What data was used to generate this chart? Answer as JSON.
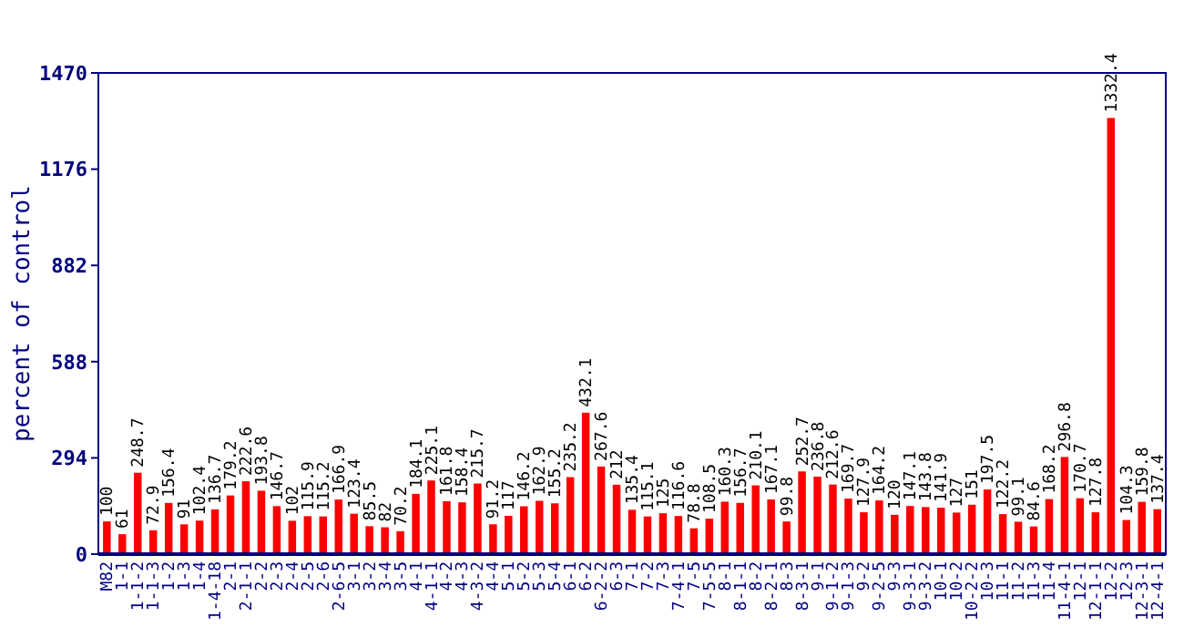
{
  "chart_data": {
    "type": "bar",
    "ylabel": "percent of control",
    "categories": [
      "M82",
      "1-1",
      "1-1-2",
      "1-1-3",
      "1-2",
      "1-3",
      "1-4",
      "1-4-18",
      "2-1",
      "2-1-1",
      "2-2",
      "2-3",
      "2-4",
      "2-5",
      "2-6",
      "2-6-5",
      "3-1",
      "3-2",
      "3-4",
      "3-5",
      "4-1",
      "4-1-1",
      "4-2",
      "4-3",
      "4-3-2",
      "4-4",
      "5-1",
      "5-2",
      "5-3",
      "5-4",
      "6-1",
      "6-2",
      "6-2-2",
      "6-3",
      "7-1",
      "7-2",
      "7-3",
      "7-4-1",
      "7-5",
      "7-5-5",
      "8-1",
      "8-1-1",
      "8-2",
      "8-2-1",
      "8-3",
      "8-3-1",
      "9-1",
      "9-1-2",
      "9-1-3",
      "9-2",
      "9-2-5",
      "9-3",
      "9-3-1",
      "9-3-2",
      "10-1",
      "10-2",
      "10-2-2",
      "10-3",
      "11-1",
      "11-2",
      "11-3",
      "11-4",
      "11-4-1",
      "12-1",
      "12-1-1",
      "12-2",
      "12-3",
      "12-3-1",
      "12-4-1"
    ],
    "values": [
      100,
      61,
      248.7,
      72.9,
      156.4,
      91,
      102.4,
      136.7,
      179.2,
      222.6,
      193.8,
      146.7,
      102,
      115.9,
      115.2,
      166.9,
      123.4,
      85.5,
      82,
      70.2,
      184.1,
      225.1,
      161.8,
      158.4,
      215.7,
      91.2,
      117,
      146.2,
      162.9,
      155.2,
      235.2,
      432.1,
      267.6,
      212,
      135.4,
      115.1,
      125,
      116.6,
      78.8,
      108.5,
      160.3,
      156.7,
      210.1,
      167.1,
      99.8,
      252.7,
      236.8,
      212.6,
      169.7,
      127.9,
      164.2,
      120,
      147.1,
      143.8,
      141.9,
      127,
      151,
      197.5,
      122.2,
      99.1,
      84.6,
      168.2,
      296.8,
      170.7,
      127.8,
      1332.4,
      104.3,
      159.8,
      137.4
    ],
    "color": "#ff0000",
    "data_labels": true,
    "ylim": [
      0,
      1470
    ],
    "yticks": [
      0,
      294,
      588,
      882,
      1176,
      1470
    ],
    "grid": false
  }
}
